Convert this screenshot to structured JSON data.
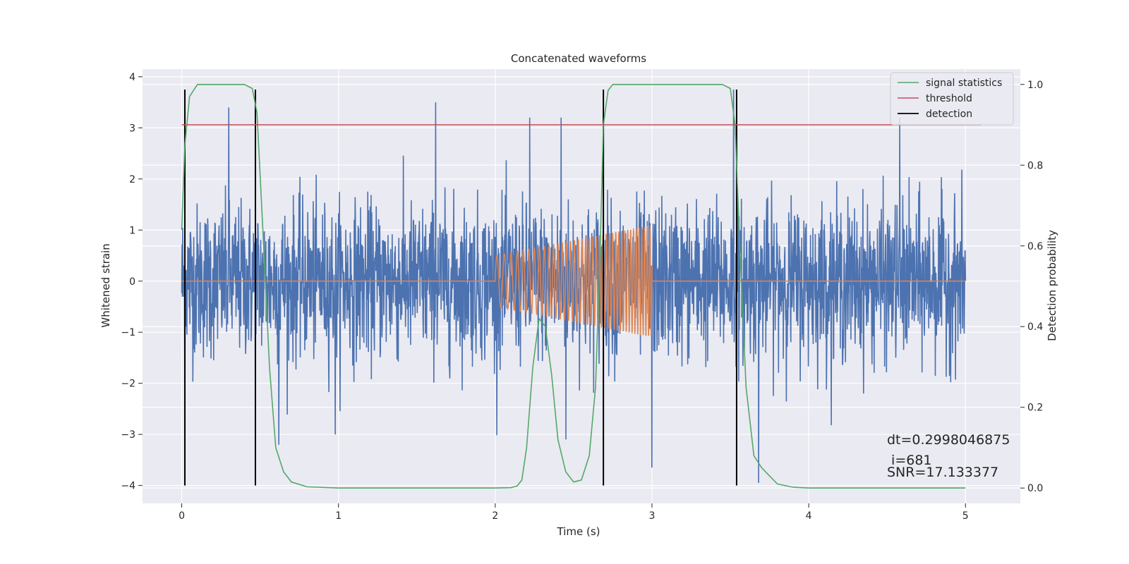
{
  "chart_data": {
    "type": "line",
    "title": "Concatenated waveforms",
    "xlabel": "Time (s)",
    "ylabel": "Whitened strain",
    "y2label": "Detection probability",
    "xlim": [
      -0.25,
      5.35
    ],
    "ylim": [
      -4.35,
      4.15
    ],
    "y2lim": [
      -0.038,
      1.038
    ],
    "xticks": [
      0,
      1,
      2,
      3,
      4,
      5
    ],
    "yticks": [
      -4,
      -3,
      -2,
      -1,
      0,
      1,
      2,
      3,
      4
    ],
    "y2ticks": [
      0.0,
      0.2,
      0.4,
      0.6,
      0.8,
      1.0
    ],
    "grid": true,
    "legend_position": "top-right",
    "colors": {
      "background": "#eaeaf2",
      "strain": "#4c72b0",
      "template": "#dd8452",
      "signal_statistics": "#55a868",
      "threshold": "#c44e52",
      "detection": "#000000"
    },
    "series": [
      {
        "name": "",
        "role": "whitened strain noise",
        "x_range": [
          0,
          5
        ],
        "typical_std": 0.75,
        "peaks": [
          [
            0.3,
            3.4
          ],
          [
            1.62,
            3.5
          ],
          [
            2.22,
            3.2
          ],
          [
            2.42,
            3.2
          ],
          [
            3.52,
            3.75
          ],
          [
            4.58,
            3.2
          ],
          [
            0.62,
            -3.2
          ],
          [
            0.98,
            -3.0
          ],
          [
            2.45,
            -3.1
          ],
          [
            3.0,
            -3.65
          ],
          [
            3.68,
            -3.95
          ]
        ]
      },
      {
        "name": "",
        "role": "injected chirp",
        "x": [
          0,
          2.0,
          2.0,
          3.0,
          3.0,
          5.0
        ],
        "envelope": [
          0,
          0,
          0.5,
          1.1,
          0,
          0
        ],
        "freq_start_hz": 20,
        "freq_end_hz": 60
      },
      {
        "name": "signal statistics",
        "axis": "right",
        "x": [
          0.0,
          0.02,
          0.05,
          0.1,
          0.4,
          0.45,
          0.48,
          0.52,
          0.56,
          0.6,
          0.65,
          0.7,
          0.8,
          1.0,
          1.5,
          2.0,
          2.1,
          2.14,
          2.17,
          2.2,
          2.24,
          2.28,
          2.32,
          2.36,
          2.4,
          2.45,
          2.5,
          2.55,
          2.6,
          2.64,
          2.67,
          2.69,
          2.72,
          2.75,
          3.45,
          3.5,
          3.53,
          3.56,
          3.6,
          3.65,
          3.7,
          3.75,
          3.8,
          3.9,
          4.0,
          5.0
        ],
        "values": [
          0.64,
          0.85,
          0.97,
          1.0,
          1.0,
          0.99,
          0.93,
          0.62,
          0.3,
          0.1,
          0.04,
          0.015,
          0.003,
          0.0,
          0.0,
          0.0,
          0.001,
          0.005,
          0.02,
          0.1,
          0.3,
          0.42,
          0.4,
          0.28,
          0.12,
          0.04,
          0.015,
          0.02,
          0.08,
          0.25,
          0.6,
          0.9,
          0.985,
          1.0,
          1.0,
          0.99,
          0.9,
          0.6,
          0.25,
          0.08,
          0.05,
          0.03,
          0.01,
          0.002,
          0.0,
          0.0
        ]
      },
      {
        "name": "threshold",
        "axis": "right",
        "x": [
          0,
          5.1
        ],
        "values": [
          0.9,
          0.9
        ]
      }
    ],
    "detections": {
      "name": "detection",
      "x": [
        0.02,
        0.47,
        2.69,
        3.54
      ],
      "y_range": [
        -4.0,
        3.75
      ]
    },
    "legend": [
      "signal statistics",
      "threshold",
      "detection"
    ],
    "annotations": [
      "dt=0.2998046875",
      " i=681",
      "SNR=17.133377"
    ]
  }
}
